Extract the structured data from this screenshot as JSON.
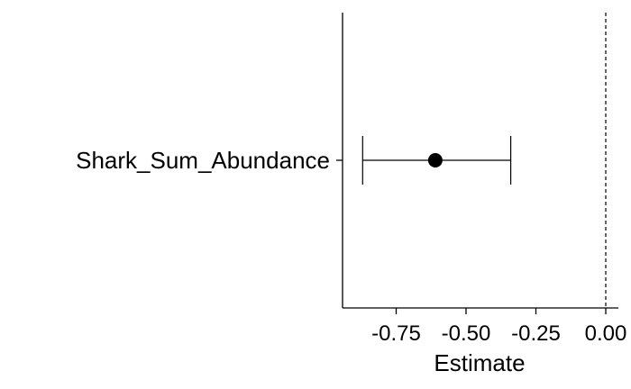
{
  "chart_data": {
    "type": "scatter",
    "xlabel": "Estimate",
    "ylabel": "",
    "xlim": [
      -0.92,
      0.0
    ],
    "xticks": [
      -0.75,
      -0.5,
      -0.25,
      0.0
    ],
    "xtick_labels": [
      "-0.75",
      "-0.50",
      "-0.25",
      "0.00"
    ],
    "reference_line": 0.0,
    "grid": false,
    "points": [
      {
        "label": "Shark_Sum_Abundance",
        "estimate": -0.61,
        "ci_low": -0.87,
        "ci_high": -0.34
      }
    ]
  }
}
